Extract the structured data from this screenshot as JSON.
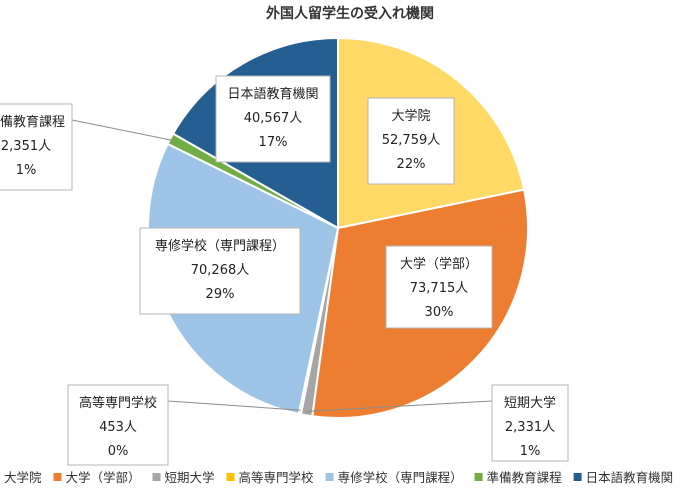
{
  "chart_data": {
    "type": "pie",
    "title": "外国人留学生の受入れ機関",
    "unit": "人",
    "slices": [
      {
        "name": "大学院",
        "value": 52759,
        "value_label": "52,759人",
        "percent": "22%",
        "color": "#FFD966"
      },
      {
        "name": "大学（学部）",
        "value": 73715,
        "value_label": "73,715人",
        "percent": "30%",
        "color": "#ED7D31"
      },
      {
        "name": "短期大学",
        "value": 2331,
        "value_label": "2,331人",
        "percent": "1%",
        "color": "#A5A5A5"
      },
      {
        "name": "高等専門学校",
        "value": 453,
        "value_label": "453人",
        "percent": "0%",
        "color": "#FFC000"
      },
      {
        "name": "専修学校（専門課程）",
        "value": 70268,
        "value_label": "70,268人",
        "percent": "29%",
        "color": "#9DC3E6"
      },
      {
        "name": "準備教育課程",
        "value": 2351,
        "value_label": "2,351人",
        "percent": "1%",
        "color": "#70AD47"
      },
      {
        "name": "日本語教育機関",
        "value": 40567,
        "value_label": "40,567人",
        "percent": "17%",
        "color": "#255E91"
      }
    ],
    "legend_position": "bottom"
  }
}
